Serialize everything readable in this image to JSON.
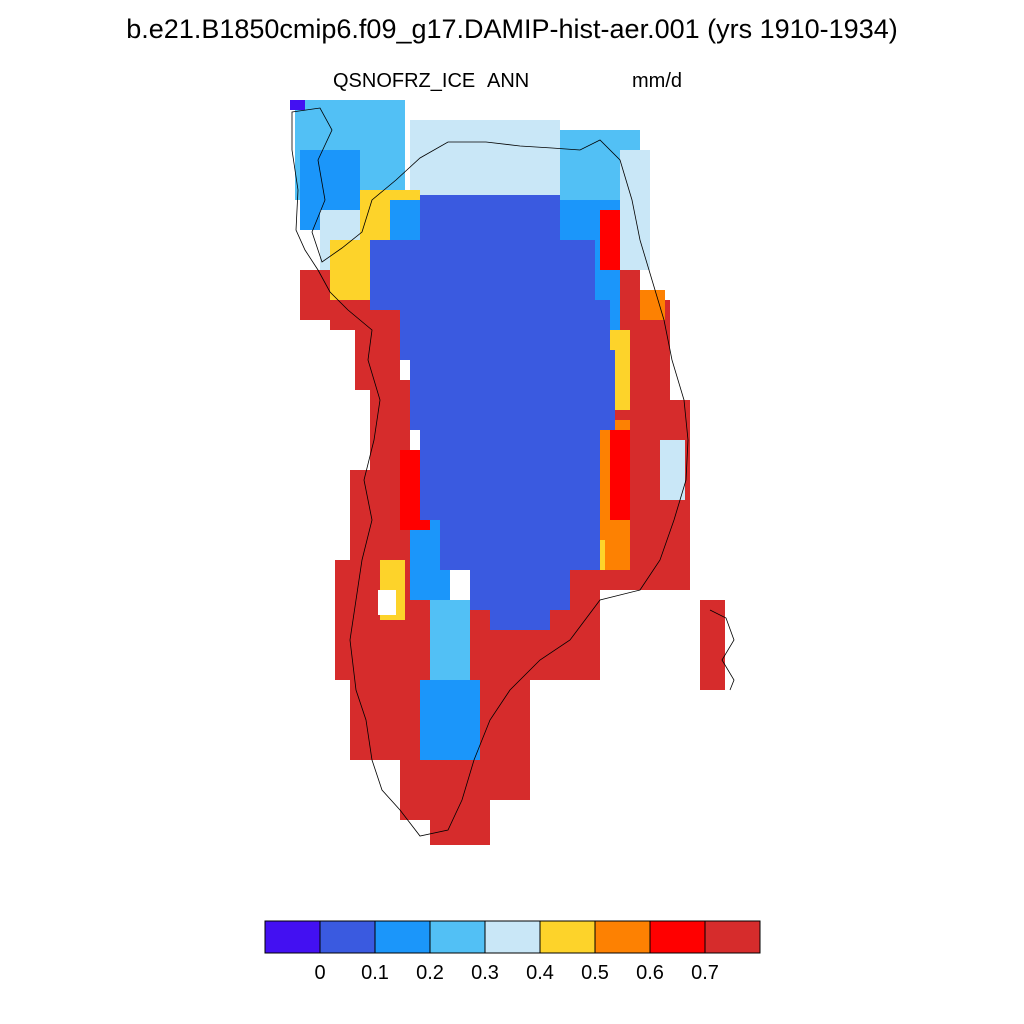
{
  "title": "b.e21.B1850cmip6.f09_g17.DAMIP-hist-aer.001 (yrs 1910-1934)",
  "variable": "QSNOFRZ_ICE",
  "period": "ANN",
  "units": "mm/d",
  "colorbar": {
    "colors": [
      "#4310f2",
      "#3a5ae0",
      "#1b96fa",
      "#52c0f5",
      "#c9e7f7",
      "#fdd32a",
      "#fd8102",
      "#ff0000",
      "#d62c2c"
    ],
    "labels": [
      "0",
      "0.1",
      "0.2",
      "0.3",
      "0.4",
      "0.5",
      "0.6",
      "0.7"
    ]
  },
  "chart_data": {
    "type": "heatmap",
    "title": "b.e21.B1850cmip6.f09_g17.DAMIP-hist-aer.001 (yrs 1910-1934)",
    "field": "QSNOFRZ_ICE",
    "season": "ANN",
    "units": "mm/d",
    "region": "Greenland",
    "levels": [
      0,
      0.1,
      0.2,
      0.3,
      0.4,
      0.5,
      0.6,
      0.7
    ],
    "interior_value_range": [
      0.1,
      0.2
    ],
    "margin_value_range": [
      0.7,
      0.8
    ]
  }
}
